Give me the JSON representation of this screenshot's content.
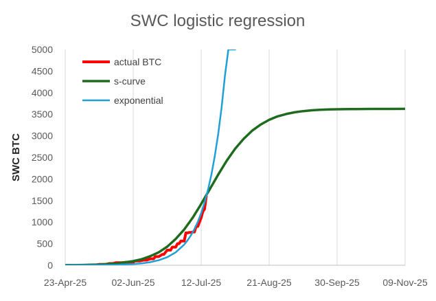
{
  "chart_data": {
    "type": "line",
    "title": "SWC logistic regression",
    "xlabel": "",
    "ylabel": "SWC BTC",
    "x_tick_labels": [
      "23-Apr-25",
      "02-Jun-25",
      "12-Jul-25",
      "21-Aug-25",
      "30-Sep-25",
      "09-Nov-25"
    ],
    "x_tick_days": [
      0,
      40,
      80,
      120,
      160,
      200
    ],
    "ylim": [
      0,
      5000
    ],
    "y_ticks": [
      0,
      500,
      1000,
      1500,
      2000,
      2500,
      3000,
      3500,
      4000,
      4500,
      5000
    ],
    "grid": {
      "vertical": true,
      "horizontal": false
    },
    "legend_position": "top-left",
    "series": [
      {
        "name": "actual BTC",
        "color": "#ff0000",
        "style": "step",
        "x": [
          0,
          17,
          20,
          24,
          26,
          28,
          30,
          33,
          36,
          40,
          41,
          44,
          46,
          48,
          50,
          52,
          53,
          55,
          57,
          58,
          60,
          62,
          63,
          65,
          66,
          67,
          68,
          70,
          71,
          72,
          73,
          74,
          75,
          76,
          77,
          78,
          79,
          80,
          81,
          82,
          83
        ],
        "y": [
          0,
          0,
          20,
          20,
          40,
          40,
          60,
          60,
          70,
          70,
          100,
          100,
          120,
          120,
          150,
          150,
          200,
          200,
          250,
          250,
          350,
          350,
          420,
          420,
          500,
          500,
          560,
          560,
          750,
          750,
          760,
          760,
          770,
          770,
          900,
          900,
          1000,
          1100,
          1250,
          1300,
          1600
        ]
      },
      {
        "name": "s-curve",
        "color": "#1e6b1e",
        "x": [
          0,
          10,
          20,
          30,
          40,
          45,
          50,
          55,
          60,
          65,
          70,
          75,
          80,
          85,
          90,
          95,
          100,
          105,
          110,
          115,
          120,
          125,
          130,
          135,
          140,
          145,
          150,
          155,
          160,
          170,
          180,
          190,
          200
        ],
        "y": [
          2,
          6,
          16,
          40,
          95,
          140,
          210,
          300,
          430,
          610,
          830,
          1100,
          1420,
          1760,
          2100,
          2420,
          2700,
          2930,
          3120,
          3260,
          3370,
          3450,
          3505,
          3545,
          3572,
          3590,
          3602,
          3610,
          3615,
          3620,
          3622,
          3623,
          3624
        ]
      },
      {
        "name": "exponential",
        "color": "#1f9fd5",
        "x": [
          0,
          10,
          20,
          30,
          40,
          45,
          50,
          55,
          60,
          65,
          70,
          72,
          74,
          76,
          78,
          80,
          82,
          84,
          86,
          88,
          90,
          92,
          94,
          96,
          98,
          100
        ],
        "y": [
          0,
          1,
          4,
          10,
          28,
          45,
          72,
          116,
          186,
          300,
          480,
          578,
          695,
          836,
          1005,
          1210,
          1455,
          1750,
          2100,
          2530,
          3040,
          3650,
          4390,
          5000,
          5000,
          5000
        ]
      }
    ]
  }
}
